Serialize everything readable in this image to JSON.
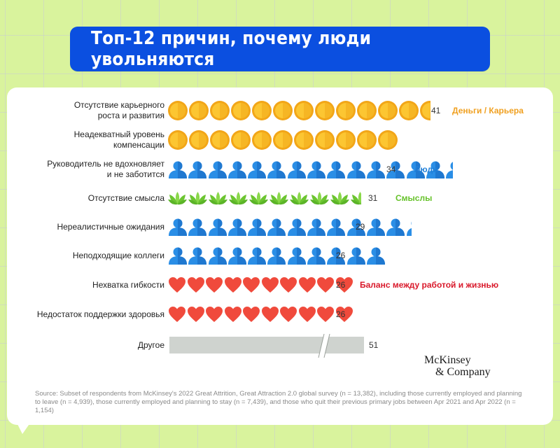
{
  "title": "Топ-12 причин, почему люди увольняются",
  "rows": [
    {
      "label_l1": "Отсутствие карьерного",
      "label_l2": "роста и развития",
      "value": "41",
      "icon": "coin-icon",
      "full": 12,
      "partial": 0.5,
      "category": "Деньги / Карьера"
    },
    {
      "label_l1": "Неадекватный уровень",
      "label_l2": "компенсации",
      "value": "",
      "icon": "coin-icon",
      "full": 11,
      "partial": 0,
      "category": ""
    },
    {
      "label_l1": "Руководитель не вдохновляет",
      "label_l2": "и не заботится",
      "value": "34",
      "icon": "person-icon",
      "full": 14,
      "partial": 0.4,
      "category": "Люди"
    },
    {
      "label_l1": "Отсутствие смысла",
      "label_l2": "",
      "value": "31",
      "icon": "lotus-icon",
      "full": 9,
      "partial": 0.5,
      "category": "Смыслы"
    },
    {
      "label_l1": "Нереалистичные ожидания",
      "label_l2": "",
      "value": "29",
      "icon": "person-icon",
      "full": 12,
      "partial": 0.3,
      "category": ""
    },
    {
      "label_l1": "Неподходящие коллеги",
      "label_l2": "",
      "value": "26",
      "icon": "person-icon",
      "full": 11,
      "partial": 0,
      "category": ""
    },
    {
      "label_l1": "Нехватка гибкости",
      "label_l2": "",
      "value": "26",
      "icon": "heart-icon",
      "full": 10,
      "partial": 0,
      "category": "Баланс между работой и жизнью"
    },
    {
      "label_l1": "Недостаток поддержки здоровья",
      "label_l2": "",
      "value": "26",
      "icon": "heart-icon",
      "full": 10,
      "partial": 0,
      "category": ""
    },
    {
      "label_l1": "Другое",
      "label_l2": "",
      "value": "51",
      "icon": "bar",
      "full": 0,
      "partial": 0,
      "category": ""
    }
  ],
  "categories": {
    "money_career": {
      "label": "Деньги / Карьера",
      "color": "#f0a020"
    },
    "people": {
      "label": "Люди",
      "color": "#1f7fd8"
    },
    "meaning": {
      "label": "Смыслы",
      "color": "#66c22a"
    },
    "balance": {
      "label": "Баланс между работой и жизнью",
      "color": "#d9182a"
    }
  },
  "brand": {
    "line1": "McKinsey",
    "line2": "& Company"
  },
  "source": "Source: Subset of respondents from McKinsey's 2022 Great Attrition, Great Attraction 2.0 global survey (n = 13,382), including those currently employed and planning to leave (n = 4,939), those currently employed and planning to stay (n = 7,439), and those who quit their previous primary jobs between Apr 2021 and Apr 2022 (n = 1,154)",
  "chart_data": {
    "type": "bar",
    "title": "Топ-12 причин, почему люди увольняются",
    "xlabel": "",
    "ylabel": "",
    "orientation": "horizontal",
    "categories": [
      "Отсутствие карьерного роста и развития",
      "Неадекватный уровень компенсации",
      "Руководитель не вдохновляет и не заботится",
      "Отсутствие смысла",
      "Нереалистичные ожидания",
      "Неподходящие коллеги",
      "Нехватка гибкости",
      "Недостаток поддержки здоровья",
      "Другое"
    ],
    "values": [
      41,
      null,
      34,
      31,
      29,
      26,
      26,
      26,
      51
    ],
    "value_labels": [
      "41",
      "",
      "34",
      "31",
      "29",
      "26",
      "26",
      "26",
      "51"
    ],
    "groups": [
      {
        "name": "Деньги / Карьера",
        "color": "#f0a020",
        "members": [
          0,
          1
        ]
      },
      {
        "name": "Люди",
        "color": "#1f7fd8",
        "members": [
          2,
          4,
          5
        ]
      },
      {
        "name": "Смыслы",
        "color": "#66c22a",
        "members": [
          3
        ]
      },
      {
        "name": "Баланс между работой и жизнью",
        "color": "#d9182a",
        "members": [
          6,
          7
        ]
      }
    ],
    "annotations": [
      "Bar 'Другое' (51) shown with axis break"
    ],
    "grid": false,
    "legend_position": "inline-right"
  }
}
